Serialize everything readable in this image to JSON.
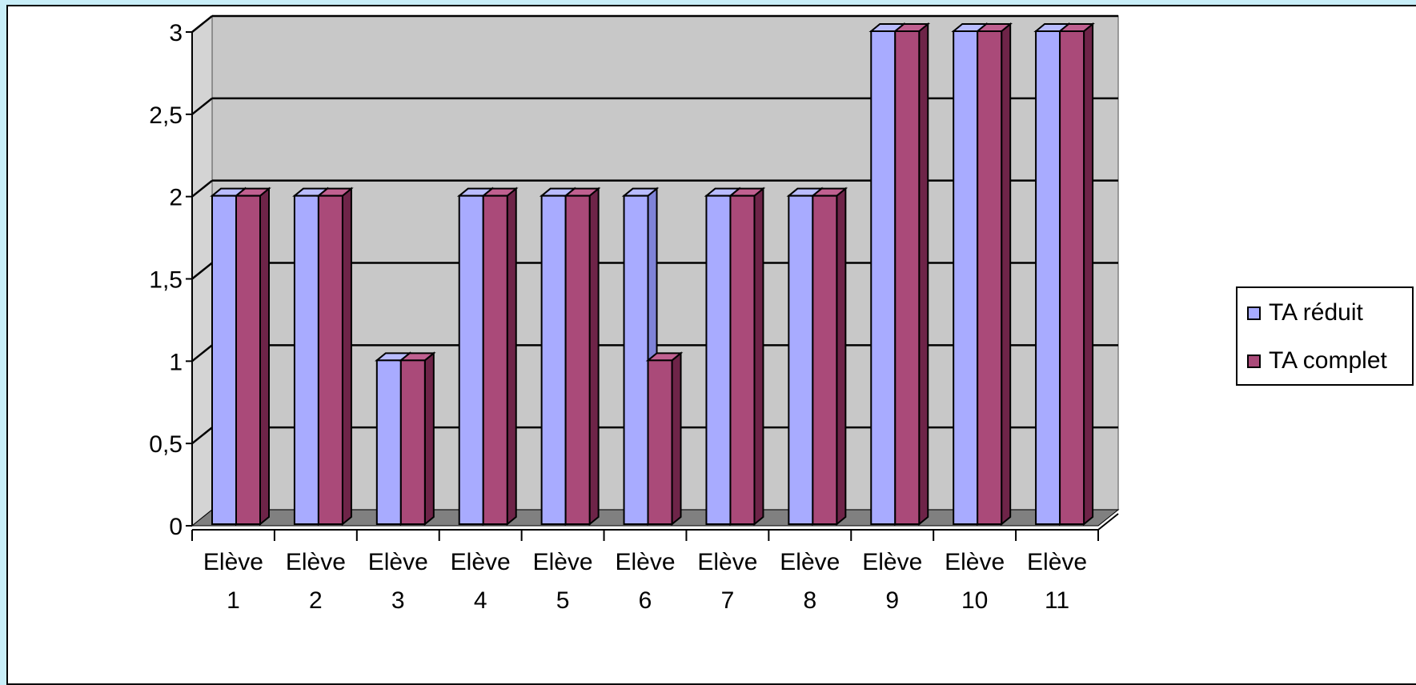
{
  "chart_data": {
    "type": "bar",
    "categories": [
      "Elève 1",
      "Elève 2",
      "Elève 3",
      "Elève 4",
      "Elève 5",
      "Elève 6",
      "Elève 7",
      "Elève 8",
      "Elève 9",
      "Elève 10",
      "Elève 11"
    ],
    "category_lines": [
      [
        "Elève",
        "1"
      ],
      [
        "Elève",
        "2"
      ],
      [
        "Elève",
        "3"
      ],
      [
        "Elève",
        "4"
      ],
      [
        "Elève",
        "5"
      ],
      [
        "Elève",
        "6"
      ],
      [
        "Elève",
        "7"
      ],
      [
        "Elève",
        "8"
      ],
      [
        "Elève",
        "9"
      ],
      [
        "Elève",
        "10"
      ],
      [
        "Elève",
        "11"
      ]
    ],
    "series": [
      {
        "name": "TA réduit",
        "values": [
          2,
          2,
          1,
          2,
          2,
          2,
          2,
          2,
          3,
          3,
          3
        ],
        "color": "#a8abff"
      },
      {
        "name": "TA complet",
        "values": [
          2,
          2,
          1,
          2,
          2,
          1,
          2,
          2,
          3,
          3,
          3
        ],
        "color": "#aa4a79"
      }
    ],
    "yticks": [
      "0",
      "0,5",
      "1",
      "1,5",
      "2",
      "2,5",
      "3"
    ],
    "ylim": [
      0,
      3
    ],
    "grid": true,
    "legend_position": "right",
    "style": "3d-clustered-column",
    "colors": {
      "wall": "#c8c8c8",
      "floor": "#808080",
      "side_wall": "#d4d4d4"
    }
  }
}
